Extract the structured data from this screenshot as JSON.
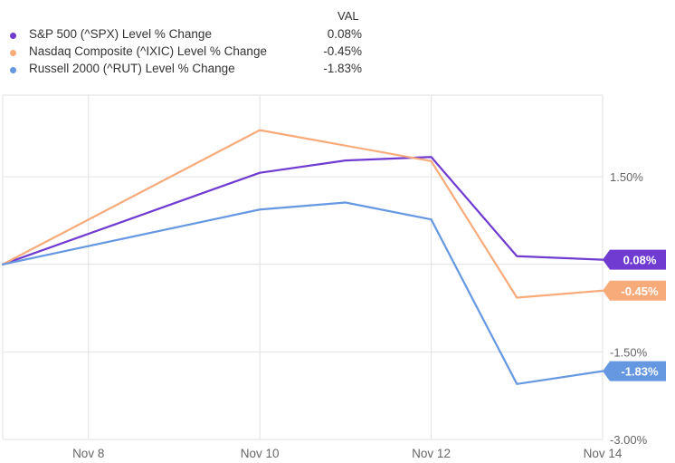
{
  "legend": {
    "header": "VAL",
    "items": [
      {
        "name": "S&P 500 (^SPX) Level % Change",
        "value": "0.08%",
        "color": "#6f3bd1"
      },
      {
        "name": "Nasdaq Composite (^IXIC) Level % Change",
        "value": "-0.45%",
        "color": "#f7ab7a"
      },
      {
        "name": "Russell 2000 (^RUT) Level % Change",
        "value": "-1.83%",
        "color": "#6598e0"
      }
    ]
  },
  "chart_data": {
    "type": "line",
    "x": [
      "Nov 7",
      "Nov 8",
      "Nov 9",
      "Nov 10",
      "Nov 11",
      "Nov 12",
      "Nov 13",
      "Nov 14"
    ],
    "x_ticks": [
      "Nov 8",
      "Nov 10",
      "Nov 12",
      "Nov 14"
    ],
    "y_ticks": [
      1.5,
      0,
      -1.5,
      -3.0
    ],
    "y_tick_labels": [
      "1.50%",
      "",
      "-1.50%",
      "-3.00%"
    ],
    "ylim": [
      -3.0,
      2.9
    ],
    "grid": true,
    "legend_position": "top-left",
    "series": [
      {
        "name": "S&P 500 (^SPX) Level % Change",
        "color": "#6f3bd1",
        "end_label": "0.08%",
        "points": [
          [
            "Nov 7",
            0.0
          ],
          [
            "Nov 10",
            1.57
          ],
          [
            "Nov 11",
            1.78
          ],
          [
            "Nov 12",
            1.84
          ],
          [
            "Nov 13",
            0.14
          ],
          [
            "Nov 14",
            0.08
          ]
        ]
      },
      {
        "name": "Nasdaq Composite (^IXIC) Level % Change",
        "color": "#f7ab7a",
        "end_label": "-0.45%",
        "points": [
          [
            "Nov 7",
            0.0
          ],
          [
            "Nov 10",
            2.3
          ],
          [
            "Nov 12",
            1.77
          ],
          [
            "Nov 13",
            -0.57
          ],
          [
            "Nov 14",
            -0.45
          ]
        ]
      },
      {
        "name": "Russell 2000 (^RUT) Level % Change",
        "color": "#6598e0",
        "end_label": "-1.83%",
        "points": [
          [
            "Nov 7",
            0.0
          ],
          [
            "Nov 10",
            0.94
          ],
          [
            "Nov 11",
            1.06
          ],
          [
            "Nov 12",
            0.77
          ],
          [
            "Nov 13",
            -2.05
          ],
          [
            "Nov 14",
            -1.83
          ]
        ]
      }
    ]
  }
}
